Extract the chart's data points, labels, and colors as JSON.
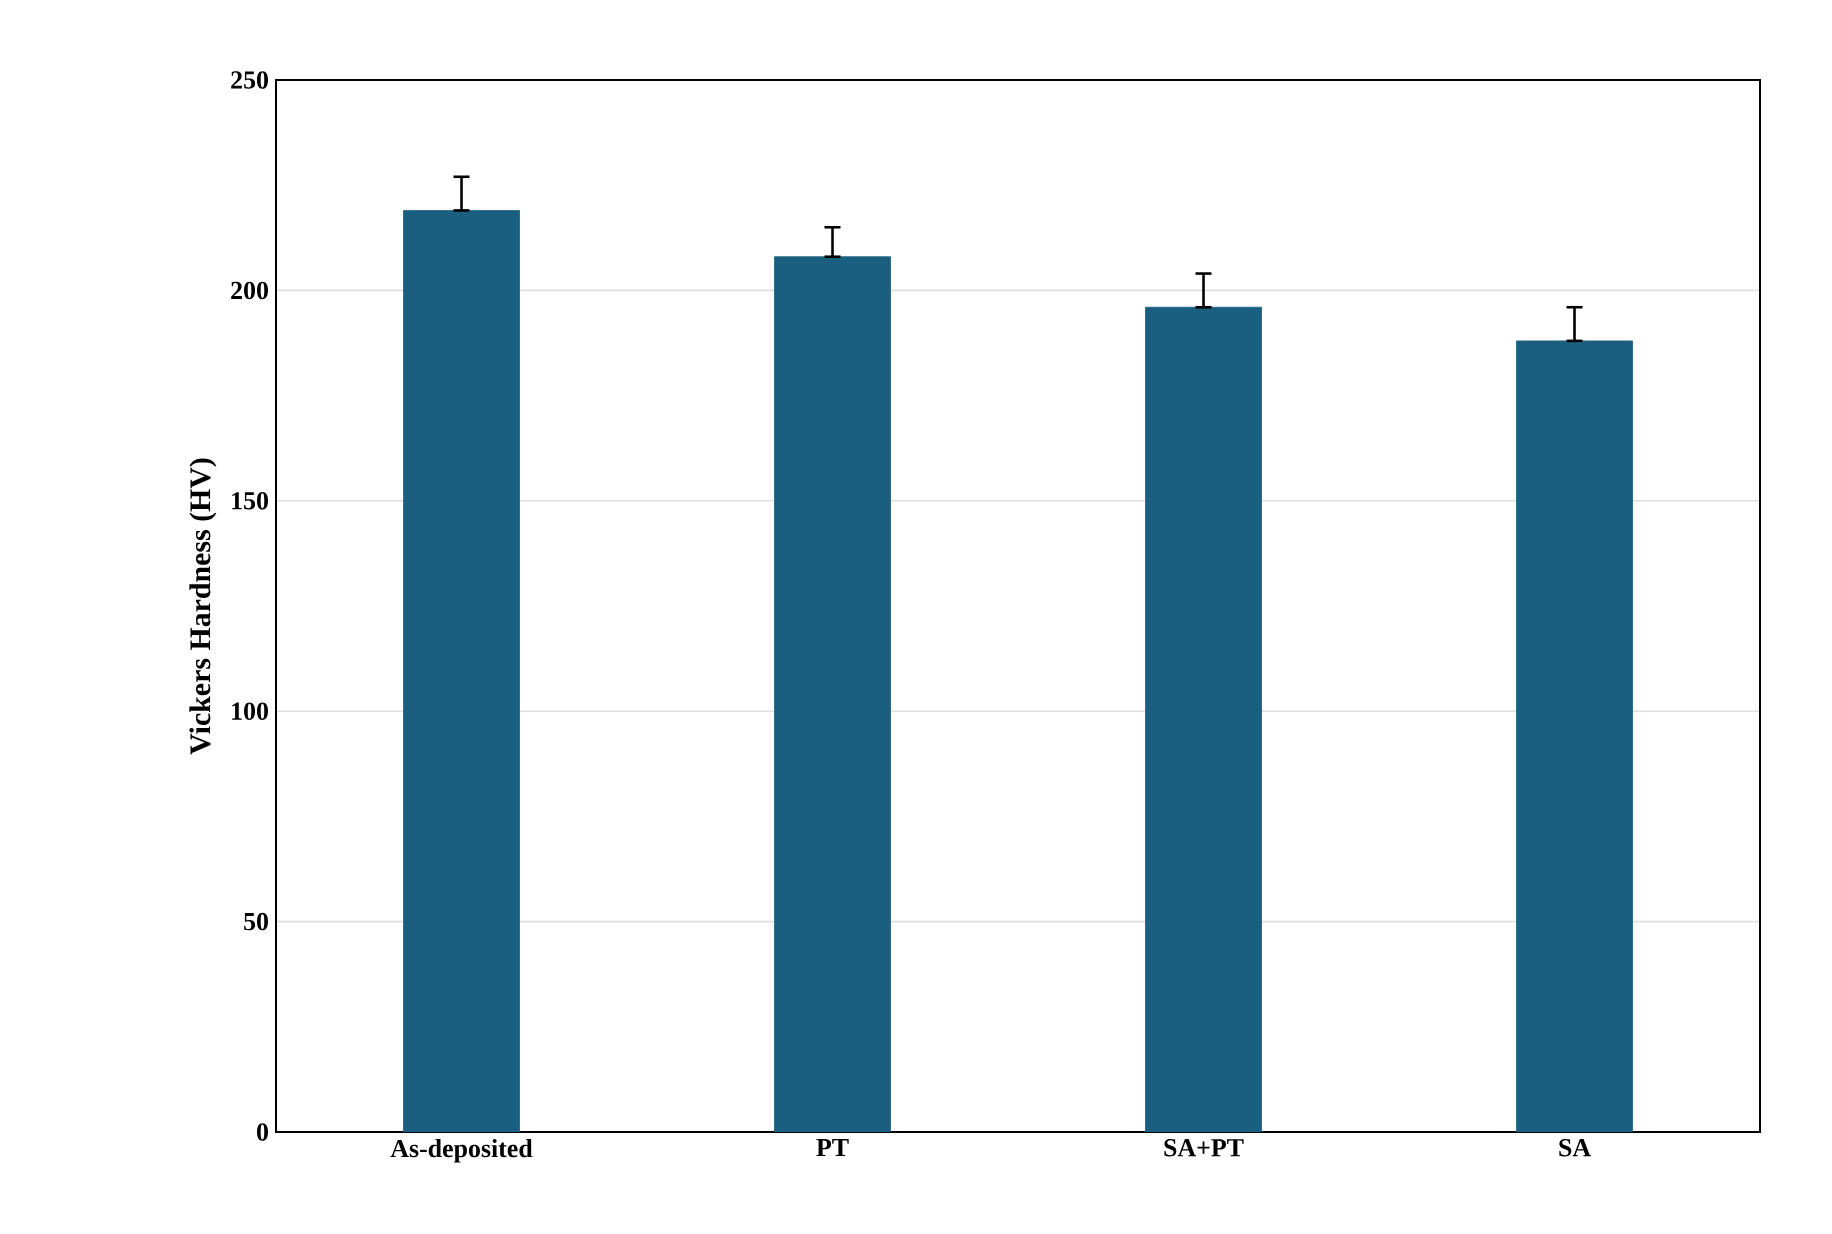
{
  "chart_data": {
    "type": "bar",
    "ylabel": "Vickers Hardness (HV)",
    "categories": [
      "As-deposited",
      "PT",
      "SA+PT",
      "SA"
    ],
    "values": [
      219,
      208,
      196,
      188
    ],
    "errors": [
      [
        219,
        227
      ],
      [
        208,
        215
      ],
      [
        196,
        204
      ],
      [
        188,
        196
      ]
    ],
    "color": "#1a5e80",
    "ylim": [
      0,
      250
    ],
    "yticks": [
      0,
      50,
      100,
      150,
      200,
      250
    ],
    "grid": "y"
  }
}
